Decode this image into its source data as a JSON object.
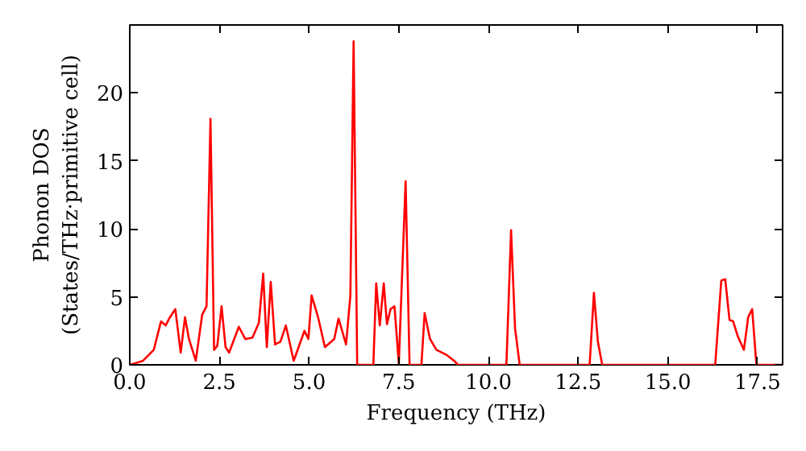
{
  "chart_data": {
    "type": "line",
    "xlabel": "Frequency (THz)",
    "ylabel": "Phonon DOS\n(States/THz·primitive cell)",
    "x": [
      0,
      0.37,
      0.67,
      0.87,
      1.0,
      1.12,
      1.27,
      1.42,
      1.54,
      1.65,
      1.84,
      2.02,
      2.14,
      2.25,
      2.35,
      2.44,
      2.56,
      2.67,
      2.77,
      3.04,
      3.22,
      3.42,
      3.6,
      3.72,
      3.82,
      3.93,
      4.05,
      4.2,
      4.35,
      4.57,
      4.87,
      4.98,
      5.07,
      5.25,
      5.44,
      5.7,
      5.82,
      6.03,
      6.15,
      6.24,
      6.34,
      6.79,
      6.87,
      6.97,
      7.08,
      7.17,
      7.27,
      7.38,
      7.5,
      7.69,
      7.8,
      8.13,
      8.22,
      8.37,
      8.55,
      8.85,
      9.04,
      9.15,
      10.5,
      10.63,
      10.74,
      10.87,
      12.82,
      12.94,
      13.05,
      13.17,
      16.32,
      16.49,
      16.6,
      16.72,
      16.82,
      16.95,
      17.12,
      17.24,
      17.35,
      17.47,
      18.2
    ],
    "series": [
      {
        "color": "#ff0000",
        "values": [
          0,
          0.3,
          1.1,
          3.2,
          2.9,
          3.5,
          4.1,
          0.9,
          3.5,
          1.9,
          0.3,
          3.7,
          4.3,
          18.1,
          1.1,
          1.4,
          4.3,
          1.3,
          0.9,
          2.8,
          1.9,
          2.0,
          3.1,
          6.7,
          1.3,
          6.1,
          1.5,
          1.7,
          2.9,
          0.3,
          2.5,
          1.9,
          5.1,
          3.5,
          1.3,
          1.9,
          3.4,
          1.5,
          5.1,
          23.8,
          0,
          0,
          6.0,
          2.9,
          6.0,
          3.0,
          4.1,
          4.3,
          0.1,
          13.5,
          0,
          0,
          3.8,
          1.9,
          1.1,
          0.7,
          0.3,
          0,
          0,
          9.9,
          2.7,
          0,
          0,
          5.3,
          1.7,
          0,
          0,
          6.2,
          6.3,
          3.3,
          3.2,
          2.1,
          1.1,
          3.5,
          4.1,
          0,
          0
        ]
      }
    ],
    "xlim": [
      0,
      18.2
    ],
    "ylim": [
      0,
      25
    ],
    "xticks": [
      {
        "value": 0,
        "label": "0.0"
      },
      {
        "value": 2.5,
        "label": "2.5"
      },
      {
        "value": 5,
        "label": "5.0"
      },
      {
        "value": 7.5,
        "label": "7.5"
      },
      {
        "value": 10,
        "label": "10.0"
      },
      {
        "value": 12.5,
        "label": "12.5"
      },
      {
        "value": 15,
        "label": "15.0"
      },
      {
        "value": 17.5,
        "label": "17.5"
      }
    ],
    "yticks": [
      0,
      5,
      10,
      15,
      20
    ],
    "grid": false,
    "marker": "none",
    "line_style": "solid"
  }
}
